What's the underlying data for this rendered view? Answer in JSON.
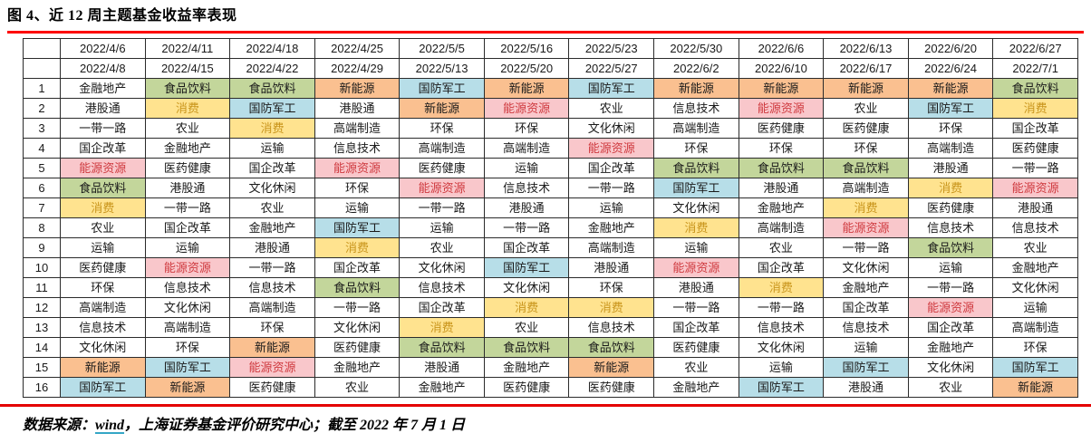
{
  "title": "图 4、近 12 周主题基金收益率表现",
  "footer": {
    "prefix": "数据来源：",
    "link_text": "wind",
    "suffix": "，上海证券基金评价研究中心；截至 2022 年 7 月 1 日"
  },
  "colors": {
    "rule_top": "#fe0000",
    "rule_bottom": "#e40000",
    "table_border": "#2b2b2b",
    "link_underline": "#35a6c6"
  },
  "chart_data": {
    "type": "table",
    "title": "近 12 周主题基金收益率表现",
    "week_start_dates": [
      "2022/4/6",
      "2022/4/11",
      "2022/4/18",
      "2022/4/25",
      "2022/5/5",
      "2022/5/16",
      "2022/5/23",
      "2022/5/30",
      "2022/6/6",
      "2022/6/13",
      "2022/6/20",
      "2022/6/27"
    ],
    "week_end_dates": [
      "2022/4/8",
      "2022/4/15",
      "2022/4/22",
      "2022/4/29",
      "2022/5/13",
      "2022/5/20",
      "2022/5/27",
      "2022/6/2",
      "2022/6/10",
      "2022/6/17",
      "2022/6/24",
      "2022/7/1"
    ],
    "ranks": [
      "1",
      "2",
      "3",
      "4",
      "5",
      "6",
      "7",
      "8",
      "9",
      "10",
      "11",
      "12",
      "13",
      "14",
      "15",
      "16"
    ],
    "rows": [
      [
        "金融地产",
        "食品饮料",
        "食品饮料",
        "新能源",
        "国防军工",
        "新能源",
        "国防军工",
        "新能源",
        "新能源",
        "新能源",
        "新能源",
        "食品饮料"
      ],
      [
        "港股通",
        "消费",
        "国防军工",
        "港股通",
        "新能源",
        "能源资源",
        "农业",
        "信息技术",
        "能源资源",
        "农业",
        "国防军工",
        "消费"
      ],
      [
        "一带一路",
        "农业",
        "消费",
        "高端制造",
        "环保",
        "环保",
        "文化休闲",
        "高端制造",
        "医药健康",
        "医药健康",
        "环保",
        "国企改革"
      ],
      [
        "国企改革",
        "金融地产",
        "运输",
        "信息技术",
        "高端制造",
        "高端制造",
        "能源资源",
        "环保",
        "环保",
        "环保",
        "高端制造",
        "医药健康"
      ],
      [
        "能源资源",
        "医药健康",
        "国企改革",
        "能源资源",
        "医药健康",
        "运输",
        "国企改革",
        "食品饮料",
        "食品饮料",
        "食品饮料",
        "港股通",
        "一带一路"
      ],
      [
        "食品饮料",
        "港股通",
        "文化休闲",
        "环保",
        "能源资源",
        "信息技术",
        "一带一路",
        "国防军工",
        "港股通",
        "高端制造",
        "消费",
        "能源资源"
      ],
      [
        "消费",
        "一带一路",
        "农业",
        "运输",
        "一带一路",
        "港股通",
        "运输",
        "文化休闲",
        "金融地产",
        "消费",
        "医药健康",
        "港股通"
      ],
      [
        "农业",
        "国企改革",
        "金融地产",
        "国防军工",
        "运输",
        "一带一路",
        "金融地产",
        "消费",
        "高端制造",
        "能源资源",
        "信息技术",
        "信息技术"
      ],
      [
        "运输",
        "运输",
        "港股通",
        "消费",
        "农业",
        "国企改革",
        "高端制造",
        "运输",
        "农业",
        "一带一路",
        "食品饮料",
        "农业"
      ],
      [
        "医药健康",
        "能源资源",
        "一带一路",
        "国企改革",
        "文化休闲",
        "国防军工",
        "港股通",
        "能源资源",
        "国企改革",
        "文化休闲",
        "运输",
        "金融地产"
      ],
      [
        "环保",
        "信息技术",
        "信息技术",
        "食品饮料",
        "信息技术",
        "文化休闲",
        "环保",
        "港股通",
        "消费",
        "金融地产",
        "一带一路",
        "文化休闲"
      ],
      [
        "高端制造",
        "文化休闲",
        "高端制造",
        "一带一路",
        "国企改革",
        "消费",
        "消费",
        "一带一路",
        "一带一路",
        "国企改革",
        "能源资源",
        "运输"
      ],
      [
        "信息技术",
        "高端制造",
        "环保",
        "文化休闲",
        "消费",
        "农业",
        "信息技术",
        "国企改革",
        "信息技术",
        "信息技术",
        "国企改革",
        "高端制造"
      ],
      [
        "文化休闲",
        "环保",
        "新能源",
        "医药健康",
        "食品饮料",
        "食品饮料",
        "食品饮料",
        "医药健康",
        "文化休闲",
        "运输",
        "金融地产",
        "环保"
      ],
      [
        "新能源",
        "国防军工",
        "能源资源",
        "金融地产",
        "港股通",
        "金融地产",
        "新能源",
        "农业",
        "运输",
        "国防军工",
        "文化休闲",
        "国防军工"
      ],
      [
        "国防军工",
        "新能源",
        "医药健康",
        "农业",
        "金融地产",
        "医药健康",
        "医药健康",
        "金融地产",
        "国防军工",
        "港股通",
        "农业",
        "新能源"
      ]
    ],
    "theme_highlights": {
      "食品饮料": "green",
      "新能源": "orange",
      "国防军工": "blue",
      "消费": "yellow",
      "能源资源": "pink"
    },
    "theme_styles": {
      "green": {
        "bg": "#c3d69b",
        "fg": "#1a1a1a"
      },
      "orange": {
        "bg": "#fac090",
        "fg": "#1a1a1a"
      },
      "blue": {
        "bg": "#b7dee8",
        "fg": "#1a1a1a"
      },
      "yellow": {
        "bg": "#ffe38f",
        "fg": "#c9951c"
      },
      "pink": {
        "bg": "#f9c7cb",
        "fg": "#cf3a3f"
      },
      "plain": {
        "bg": "#ffffff",
        "fg": "#1a1a1a"
      }
    }
  }
}
